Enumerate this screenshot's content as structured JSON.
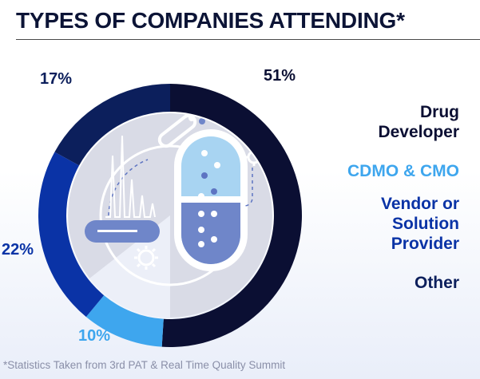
{
  "title": "TYPES OF COMPANIES ATTENDING*",
  "footnote": "*Statistics Taken from 3rd PAT & Real Time Quality Summit",
  "colors": {
    "drug_developer": "#0b0f33",
    "cdmo": "#3ea6ee",
    "vendor": "#0a33a6",
    "other": "#0c1f5c"
  },
  "chart_data": {
    "type": "pie",
    "style": "donut",
    "categories": [
      "Drug Developer",
      "CDMO & CMO",
      "Vendor or Solution Provider",
      "Other"
    ],
    "values": [
      51,
      10,
      22,
      17
    ],
    "value_labels": [
      "51%",
      "10%",
      "22%",
      "17%"
    ],
    "legend": [
      "Drug\nDeveloper",
      "CDMO & CMO",
      "Vendor or\nSolution\nProvider",
      "Other"
    ],
    "legend_position": "right"
  }
}
